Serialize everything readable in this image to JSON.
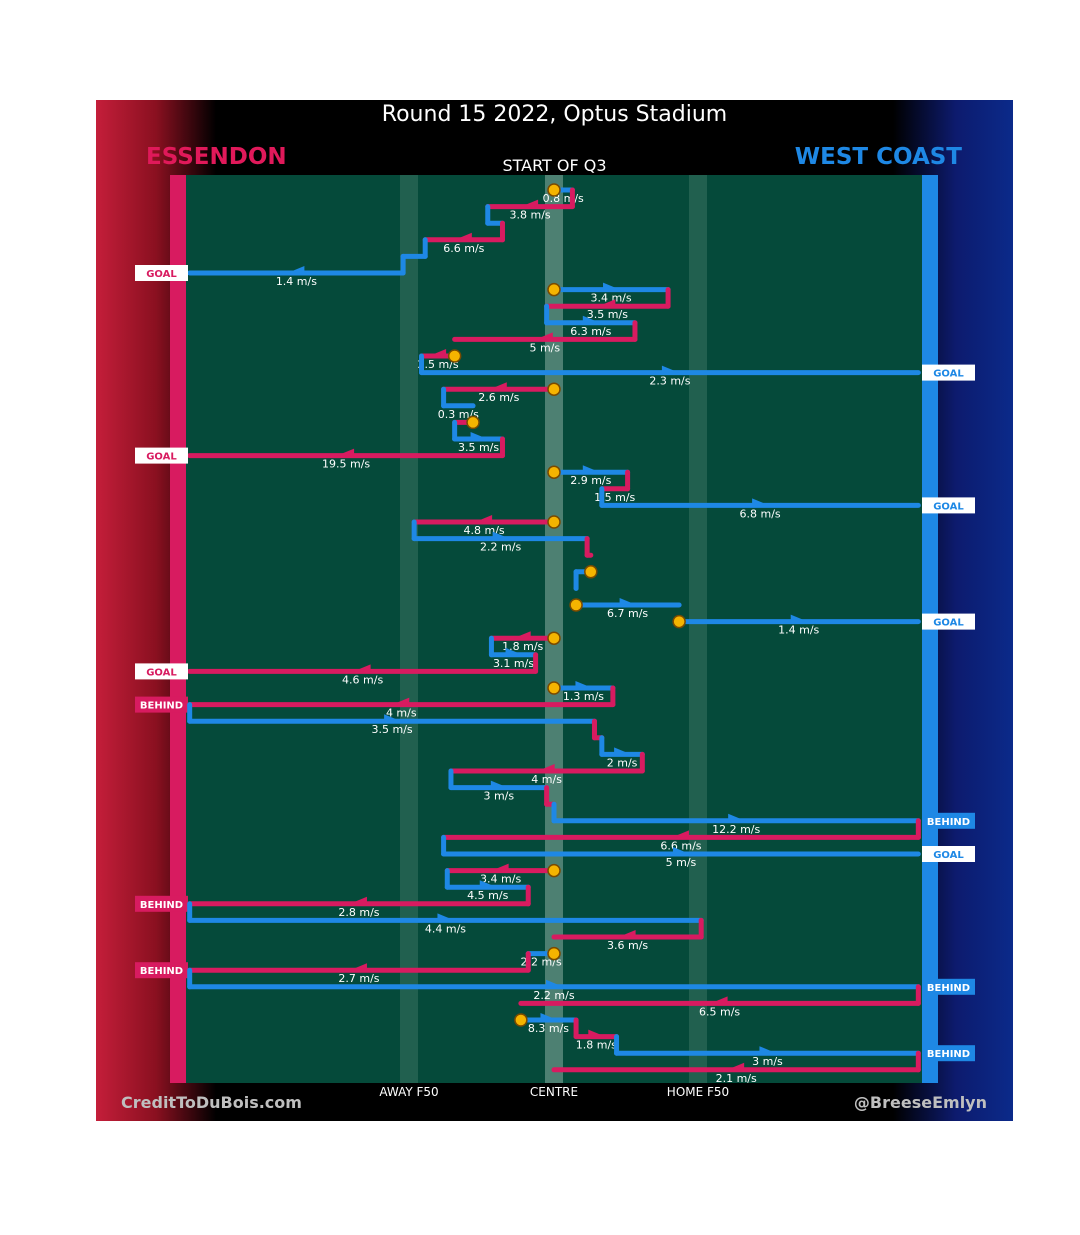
{
  "title": "Round 15 2022, Optus Stadium",
  "subtitle": "START OF Q3",
  "teams": {
    "home": "ESSENDON",
    "away": "WEST COAST"
  },
  "credits": {
    "left": "CreditToDuBois.com",
    "right": "@BreeseEmlyn"
  },
  "zones": {
    "away_f50": "AWAY F50",
    "centre": "CENTRE",
    "home_f50": "HOME F50"
  },
  "colors": {
    "essendon": "#d81b60",
    "west_coast": "#1e88e5",
    "field": "#054a3a",
    "marker": "#f5b400"
  },
  "chart_data": {
    "type": "line",
    "title": "Round 15 2022, Optus Stadium",
    "x_axis": {
      "ticks": [
        "AWAY F50",
        "CENTRE",
        "HOME F50"
      ]
    },
    "chains": [
      {
        "start": true,
        "segments": [
          {
            "team": "west_coast",
            "from": 0,
            "to": 0.05,
            "speed": "0.8 m/s"
          },
          {
            "team": "essendon",
            "from": 0.05,
            "to": -0.18,
            "speed": "3.8 m/s"
          },
          {
            "team": "west_coast",
            "from": -0.18,
            "to": -0.14,
            "speed": ""
          },
          {
            "team": "essendon",
            "from": -0.14,
            "to": -0.35,
            "speed": "6.6 m/s"
          },
          {
            "team": "west_coast",
            "from": -0.35,
            "to": -0.41,
            "speed": ""
          },
          {
            "team": "west_coast",
            "from": -0.41,
            "to": -0.99,
            "speed": "1.4 m/s",
            "outcome": "GOAL",
            "outcome_side": "essendon"
          }
        ]
      },
      {
        "start": true,
        "segments": [
          {
            "team": "west_coast",
            "from": 0,
            "to": 0.31,
            "speed": "3.4 m/s"
          },
          {
            "team": "essendon",
            "from": 0.31,
            "to": -0.02,
            "speed": "3.5 m/s"
          },
          {
            "team": "west_coast",
            "from": -0.02,
            "to": 0.22,
            "speed": "6.3 m/s"
          },
          {
            "team": "essendon",
            "from": 0.22,
            "to": -0.27,
            "speed": "5 m/s"
          }
        ]
      },
      {
        "start": true,
        "segments": [
          {
            "team": "essendon",
            "from": -0.27,
            "to": -0.36,
            "speed": "2.5 m/s"
          },
          {
            "team": "west_coast",
            "from": -0.36,
            "to": 0.99,
            "speed": "2.3 m/s",
            "outcome": "GOAL",
            "outcome_side": "west_coast"
          }
        ]
      },
      {
        "start": true,
        "segments": [
          {
            "team": "essendon",
            "from": 0,
            "to": -0.3,
            "speed": "2.6 m/s"
          },
          {
            "team": "west_coast",
            "from": -0.3,
            "to": -0.22,
            "speed": "0.3 m/s"
          }
        ]
      },
      {
        "start": true,
        "segments": [
          {
            "team": "essendon",
            "from": -0.22,
            "to": -0.27,
            "speed": ""
          },
          {
            "team": "west_coast",
            "from": -0.27,
            "to": -0.14,
            "speed": "3.5 m/s"
          },
          {
            "team": "essendon",
            "from": -0.14,
            "to": -0.99,
            "speed": "19.5 m/s",
            "outcome": "GOAL",
            "outcome_side": "essendon"
          }
        ]
      },
      {
        "start": true,
        "segments": [
          {
            "team": "west_coast",
            "from": 0,
            "to": 0.2,
            "speed": "2.9 m/s"
          },
          {
            "team": "essendon",
            "from": 0.2,
            "to": 0.13,
            "speed": "1.5 m/s"
          },
          {
            "team": "west_coast",
            "from": 0.13,
            "to": 0.99,
            "speed": "6.8 m/s",
            "outcome": "GOAL",
            "outcome_side": "west_coast"
          }
        ]
      },
      {
        "start": true,
        "segments": [
          {
            "team": "essendon",
            "from": 0,
            "to": -0.38,
            "speed": "4.8 m/s"
          },
          {
            "team": "west_coast",
            "from": -0.38,
            "to": 0.09,
            "speed": "2.2 m/s"
          },
          {
            "team": "essendon",
            "from": 0.09,
            "to": 0.1,
            "speed": ""
          }
        ]
      },
      {
        "start": true,
        "segments": [
          {
            "team": "west_coast",
            "from": 0.1,
            "to": 0.06,
            "speed": ""
          },
          {
            "team": "west_coast",
            "from": 0.06,
            "to": 0.06,
            "speed": ""
          }
        ]
      },
      {
        "start": true,
        "segments": [
          {
            "team": "west_coast",
            "from": 0.06,
            "to": 0.34,
            "speed": "6.7 m/s"
          }
        ]
      },
      {
        "start": true,
        "segments": [
          {
            "team": "west_coast",
            "from": 0.34,
            "to": 0.99,
            "speed": "1.4 m/s",
            "outcome": "GOAL",
            "outcome_side": "west_coast"
          }
        ]
      },
      {
        "start": true,
        "segments": [
          {
            "team": "essendon",
            "from": 0,
            "to": -0.17,
            "speed": "1.8 m/s"
          },
          {
            "team": "west_coast",
            "from": -0.17,
            "to": -0.05,
            "speed": "3.1 m/s"
          },
          {
            "team": "essendon",
            "from": -0.05,
            "to": -0.99,
            "speed": "4.6 m/s",
            "outcome": "GOAL",
            "outcome_side": "essendon"
          }
        ]
      },
      {
        "start": true,
        "segments": [
          {
            "team": "west_coast",
            "from": 0,
            "to": 0.16,
            "speed": "1.3 m/s"
          },
          {
            "team": "essendon",
            "from": 0.16,
            "to": -0.99,
            "speed": "4 m/s",
            "outcome": "BEHIND",
            "outcome_side": "essendon"
          },
          {
            "team": "west_coast",
            "from": -0.99,
            "to": 0.11,
            "speed": "3.5 m/s"
          },
          {
            "team": "essendon",
            "from": 0.11,
            "to": 0.13,
            "speed": ""
          },
          {
            "team": "west_coast",
            "from": 0.13,
            "to": 0.24,
            "speed": "2 m/s"
          },
          {
            "team": "essendon",
            "from": 0.24,
            "to": -0.28,
            "speed": "4 m/s"
          },
          {
            "team": "west_coast",
            "from": -0.28,
            "to": -0.02,
            "speed": "3 m/s"
          },
          {
            "team": "essendon",
            "from": -0.02,
            "to": 0,
            "speed": ""
          },
          {
            "team": "west_coast",
            "from": 0,
            "to": 0.99,
            "speed": "12.2 m/s",
            "outcome": "BEHIND",
            "outcome_side": "west_coast"
          },
          {
            "team": "essendon",
            "from": 0.99,
            "to": -0.3,
            "speed": "6.6 m/s"
          },
          {
            "team": "west_coast",
            "from": -0.3,
            "to": 0.99,
            "speed": "5 m/s",
            "outcome": "GOAL",
            "outcome_side": "west_coast"
          }
        ]
      },
      {
        "start": true,
        "segments": [
          {
            "team": "essendon",
            "from": 0,
            "to": -0.29,
            "speed": "3.4 m/s"
          },
          {
            "team": "west_coast",
            "from": -0.29,
            "to": -0.07,
            "speed": "4.5 m/s"
          },
          {
            "team": "essendon",
            "from": -0.07,
            "to": -0.99,
            "speed": "2.8 m/s",
            "outcome": "BEHIND",
            "outcome_side": "essendon"
          },
          {
            "team": "west_coast",
            "from": -0.99,
            "to": 0.4,
            "speed": "4.4 m/s"
          },
          {
            "team": "essendon",
            "from": 0.4,
            "to": 0,
            "speed": "3.6 m/s"
          }
        ]
      },
      {
        "start": true,
        "segments": [
          {
            "team": "west_coast",
            "from": 0,
            "to": -0.07,
            "speed": "2.2 m/s"
          },
          {
            "team": "essendon",
            "from": -0.07,
            "to": -0.99,
            "speed": "2.7 m/s",
            "outcome": "BEHIND",
            "outcome_side": "essendon"
          },
          {
            "team": "west_coast",
            "from": -0.99,
            "to": 0.99,
            "speed": "2.2 m/s",
            "outcome": "BEHIND",
            "outcome_side": "west_coast"
          },
          {
            "team": "essendon",
            "from": 0.99,
            "to": -0.09,
            "speed": "6.5 m/s"
          }
        ]
      },
      {
        "start": true,
        "segments": [
          {
            "team": "west_coast",
            "from": -0.09,
            "to": 0.06,
            "speed": "8.3 m/s"
          },
          {
            "team": "essendon",
            "from": 0.06,
            "to": 0.17,
            "speed": "1.8 m/s"
          },
          {
            "team": "west_coast",
            "from": 0.17,
            "to": 0.99,
            "speed": "3 m/s",
            "outcome": "BEHIND",
            "outcome_side": "west_coast"
          },
          {
            "team": "essendon",
            "from": 0.99,
            "to": 0,
            "speed": "2.1 m/s"
          }
        ]
      }
    ]
  }
}
